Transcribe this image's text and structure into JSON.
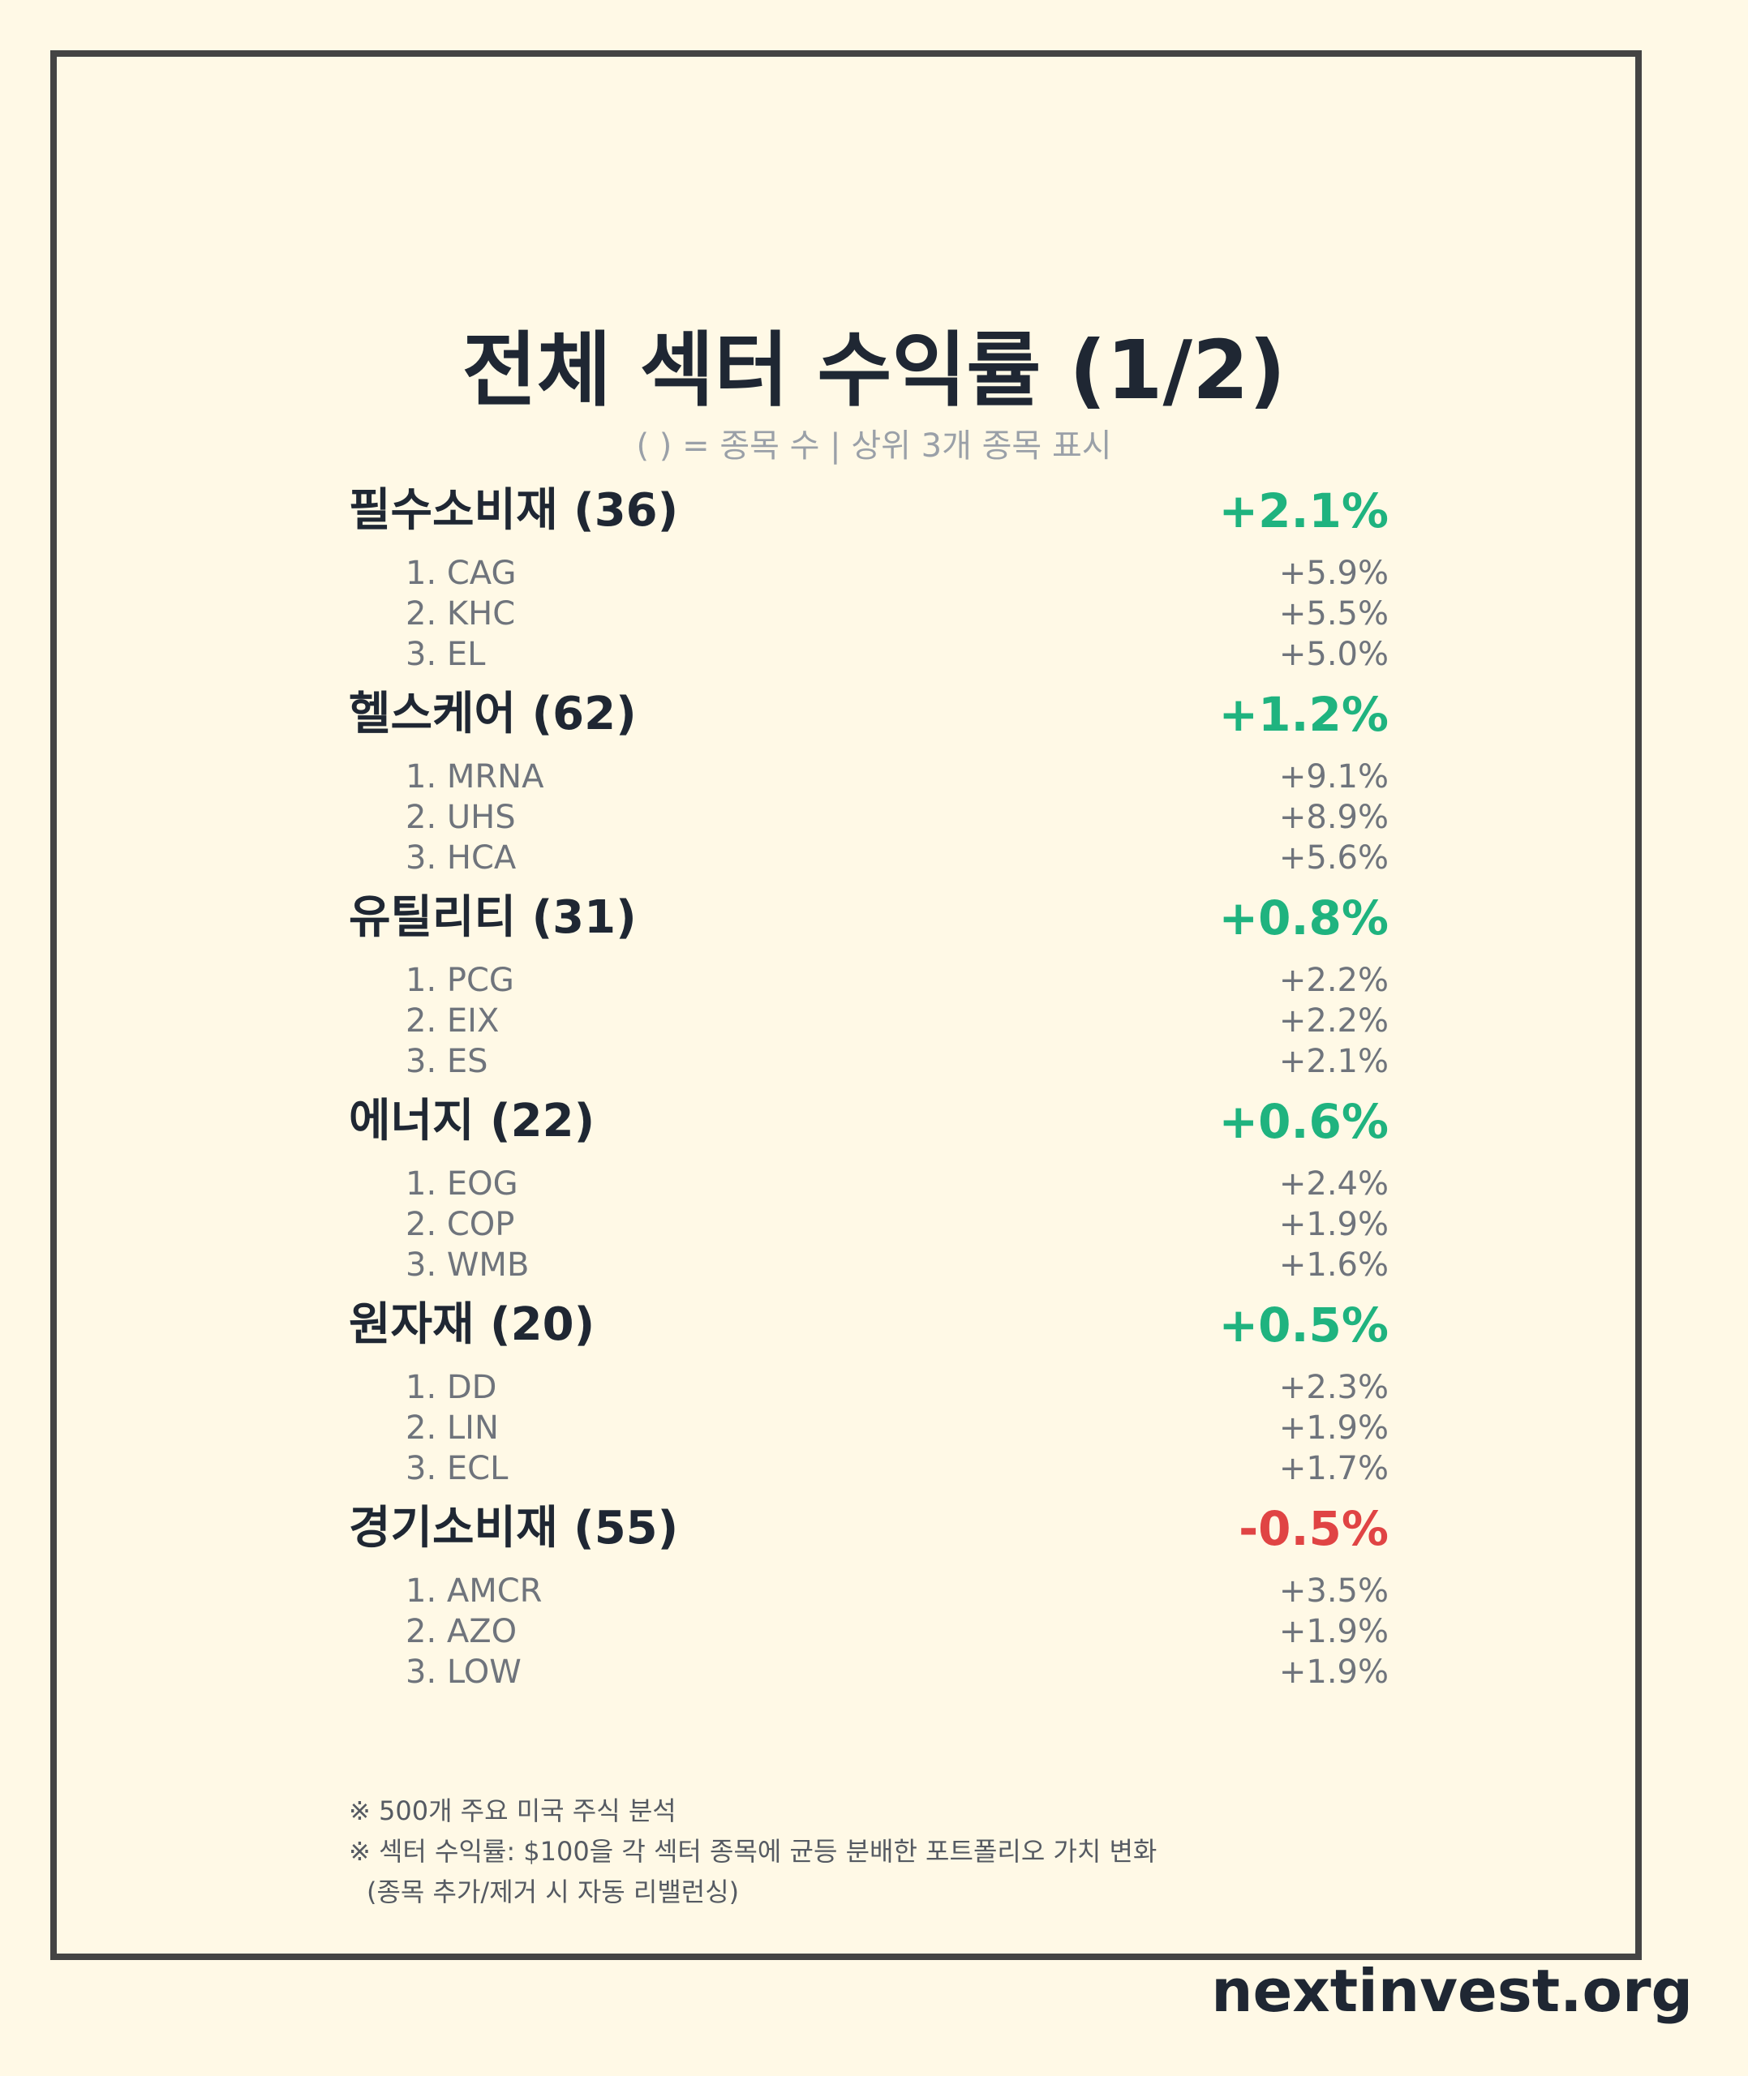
{
  "title": "전체 섹터 수익률 (1/2)",
  "subtitle": "( ) = 종목 수 | 상위 3개 종목 표시",
  "colors": {
    "background": "#fff9e6",
    "frame": "#444444",
    "positive": "#1fb37f",
    "negative": "#e04444",
    "stock_text": "#6f747c"
  },
  "sectors": [
    {
      "name": "필수소비재 (36)",
      "return": "+2.1%",
      "trend": "positive",
      "stocks": [
        {
          "name": "1. CAG",
          "return": "+5.9%"
        },
        {
          "name": "2. KHC",
          "return": "+5.5%"
        },
        {
          "name": "3. EL",
          "return": "+5.0%"
        }
      ]
    },
    {
      "name": "헬스케어 (62)",
      "return": "+1.2%",
      "trend": "positive",
      "stocks": [
        {
          "name": "1. MRNA",
          "return": "+9.1%"
        },
        {
          "name": "2. UHS",
          "return": "+8.9%"
        },
        {
          "name": "3. HCA",
          "return": "+5.6%"
        }
      ]
    },
    {
      "name": "유틸리티 (31)",
      "return": "+0.8%",
      "trend": "positive",
      "stocks": [
        {
          "name": "1. PCG",
          "return": "+2.2%"
        },
        {
          "name": "2. EIX",
          "return": "+2.2%"
        },
        {
          "name": "3. ES",
          "return": "+2.1%"
        }
      ]
    },
    {
      "name": "에너지 (22)",
      "return": "+0.6%",
      "trend": "positive",
      "stocks": [
        {
          "name": "1. EOG",
          "return": "+2.4%"
        },
        {
          "name": "2. COP",
          "return": "+1.9%"
        },
        {
          "name": "3. WMB",
          "return": "+1.6%"
        }
      ]
    },
    {
      "name": "원자재 (20)",
      "return": "+0.5%",
      "trend": "positive",
      "stocks": [
        {
          "name": "1. DD",
          "return": "+2.3%"
        },
        {
          "name": "2. LIN",
          "return": "+1.9%"
        },
        {
          "name": "3. ECL",
          "return": "+1.7%"
        }
      ]
    },
    {
      "name": "경기소비재 (55)",
      "return": "-0.5%",
      "trend": "negative",
      "stocks": [
        {
          "name": "1. AMCR",
          "return": "+3.5%"
        },
        {
          "name": "2. AZO",
          "return": "+1.9%"
        },
        {
          "name": "3. LOW",
          "return": "+1.9%"
        }
      ]
    }
  ],
  "notes": [
    "※ 500개 주요 미국 주식 분석",
    "※ 섹터 수익률: $100을 각 섹터 종목에 균등 분배한 포트폴리오 가치 변화",
    "(종목 추가/제거 시 자동 리밸런싱)"
  ],
  "brand": "nextinvest.org"
}
